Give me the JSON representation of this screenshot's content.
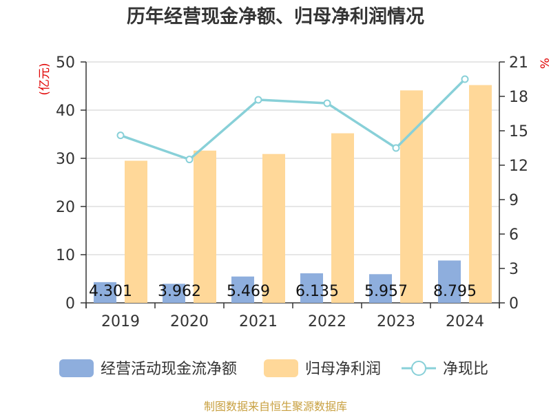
{
  "chart_data": {
    "type": "bar",
    "title": "历年经营现金净额、归母净利润情况",
    "categories": [
      "2019",
      "2020",
      "2021",
      "2022",
      "2023",
      "2024"
    ],
    "series": [
      {
        "name": "经营活动现金流净额",
        "type": "bar",
        "axis": "left",
        "color": "#8eaedd",
        "values": [
          4.301,
          3.962,
          5.469,
          6.135,
          5.957,
          8.795
        ],
        "labels": [
          "4.301",
          "3.962",
          "5.469",
          "6.135",
          "5.957",
          "8.795"
        ]
      },
      {
        "name": "归母净利润",
        "type": "bar",
        "axis": "left",
        "color": "#ffd899",
        "values": [
          29.5,
          31.6,
          30.9,
          35.2,
          44.1,
          45.2
        ]
      },
      {
        "name": "净现比",
        "type": "line",
        "axis": "right",
        "color": "#88d0d8",
        "values": [
          14.6,
          12.5,
          17.7,
          17.4,
          13.5,
          19.5
        ]
      }
    ],
    "ylabel_left": "(亿元)",
    "ylabel_right": "%",
    "ylim_left": [
      0,
      50
    ],
    "yticks_left": [
      "0",
      "10",
      "20",
      "30",
      "40",
      "50"
    ],
    "ylim_right": [
      0,
      21
    ],
    "yticks_right": [
      "0",
      "3",
      "6",
      "9",
      "12",
      "15",
      "18",
      "21"
    ],
    "grid": true,
    "legend_position": "bottom"
  },
  "source_note": "制图数据来自恒生聚源数据库"
}
